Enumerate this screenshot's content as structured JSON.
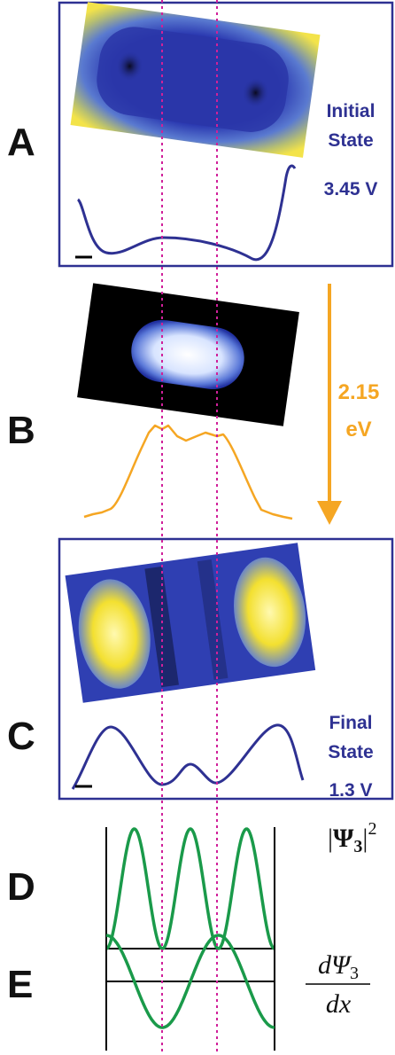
{
  "panels": [
    {
      "label": "A",
      "caption": [
        "Initial",
        "State"
      ],
      "bias": "3.45 V"
    },
    {
      "label": "B",
      "energy": [
        "2.15",
        "eV"
      ]
    },
    {
      "label": "C",
      "caption": [
        "Final",
        "State"
      ],
      "bias": "1.3 V"
    },
    {
      "label": "D",
      "formula": {
        "open": "|",
        "symbol": "Ψ",
        "subscript": "3",
        "close": "|",
        "superscript": "2"
      }
    },
    {
      "label": "E",
      "formula": {
        "numerator": "dΨ",
        "numerator_subscript": "3",
        "denominator": "dx"
      }
    }
  ]
}
